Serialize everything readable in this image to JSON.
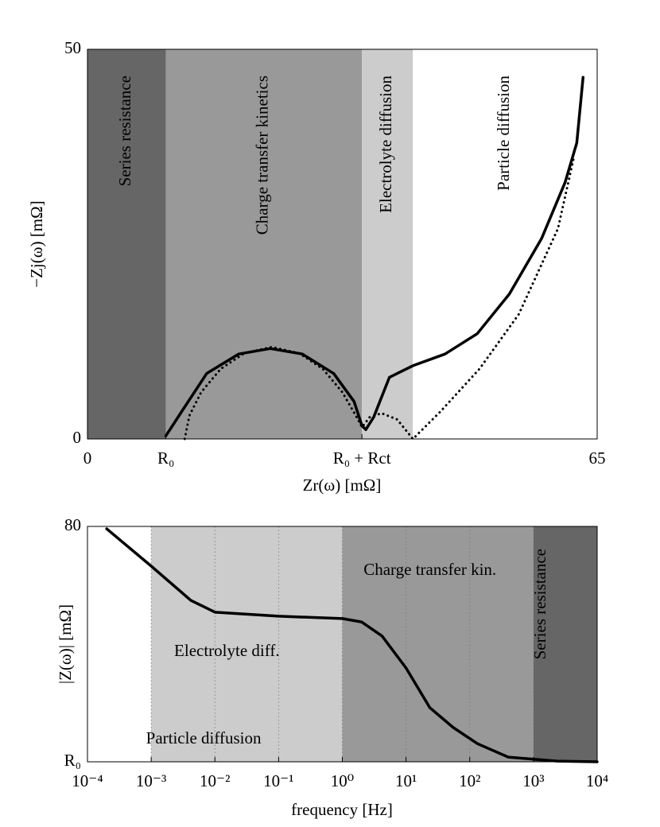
{
  "chart_data": [
    {
      "type": "line",
      "x_label": "Zr(ω) [mΩ]",
      "y_label": "−Zj(ω) [mΩ]",
      "xlim": [
        0,
        65
      ],
      "ylim": [
        0,
        50
      ],
      "xticks": [
        0,
        {
          "value": 10,
          "label": "R₀"
        },
        {
          "value": 35,
          "label": "R₀ + Rct"
        },
        65
      ],
      "yticks": [
        0,
        50
      ],
      "regions": [
        {
          "name": "Series resistance",
          "start": 0,
          "end": 10,
          "color": "#666666"
        },
        {
          "name": "Charge transfer kinetics",
          "start": 10,
          "end": 35,
          "color": "#999999"
        },
        {
          "name": "Electrolyte diffusion",
          "start": 35,
          "end": 41.5,
          "color": "#cccccc"
        },
        {
          "name": "Particle diffusion",
          "start": 41.5,
          "end": 65,
          "color": "#ffffff"
        }
      ],
      "series": [
        {
          "color": "#000000",
          "dash": "solid",
          "x": [
            10,
            12.2,
            15.2,
            19.3,
            23.3,
            27.4,
            31.4,
            34,
            35,
            35.5,
            36.5,
            38.5,
            41.5,
            45.6,
            49.7,
            53.8,
            57.9,
            60.9,
            62.4,
            63.2
          ],
          "values": [
            0.4,
            3.8,
            8.4,
            10.9,
            11.6,
            10.9,
            8.4,
            4.8,
            1.7,
            1.2,
            2.8,
            7.9,
            9.4,
            10.9,
            13.5,
            18.6,
            25.7,
            32.9,
            38,
            46.4
          ]
        },
        {
          "color": "#000000",
          "dash": "dotted",
          "x": [
            12.4,
            13,
            14.5,
            17,
            20,
            23.5,
            27,
            30,
            32.5,
            34.5,
            35,
            36,
            37.5,
            39.5,
            41.5,
            45,
            50,
            55,
            60,
            62
          ],
          "values": [
            0,
            3,
            6,
            9,
            11,
            11.8,
            11,
            9,
            6,
            2.5,
            1.5,
            2.8,
            3.3,
            2.5,
            0,
            3.5,
            9,
            16,
            27,
            36
          ]
        }
      ]
    },
    {
      "type": "line",
      "x_label": "frequency [Hz]",
      "y_label": "|Z(ω)| [mΩ]",
      "xscale": "log",
      "grid": true,
      "xlim": [
        0.0001,
        10000
      ],
      "ylim": [
        10,
        80
      ],
      "xticks": [
        {
          "value": 0.0001,
          "label": "10⁻⁴"
        },
        {
          "value": 0.001,
          "label": "10⁻³"
        },
        {
          "value": 0.01,
          "label": "10⁻²"
        },
        {
          "value": 0.1,
          "label": "10⁻¹"
        },
        {
          "value": 1,
          "label": "10⁰"
        },
        {
          "value": 10,
          "label": "10¹"
        },
        {
          "value": 100,
          "label": "10²"
        },
        {
          "value": 1000,
          "label": "10³"
        },
        {
          "value": 10000,
          "label": "10⁴"
        }
      ],
      "yticks": [
        {
          "value": 10,
          "label": "R₀"
        },
        80
      ],
      "regions": [
        {
          "name": "Particle diffusion",
          "start": 0.0001,
          "end": 0.001,
          "color": "#ffffff"
        },
        {
          "name": "Electrolyte diff.",
          "start": 0.001,
          "end": 1,
          "color": "#cccccc"
        },
        {
          "name": "Charge transfer kin.",
          "start": 1,
          "end": 1000,
          "color": "#999999"
        },
        {
          "name": "Series resistance",
          "start": 1000,
          "end": 10000,
          "color": "#666666"
        }
      ],
      "series": [
        {
          "color": "#000000",
          "dash": "solid",
          "x": [
            0.0002,
            0.001,
            0.0042,
            0.01,
            0.1,
            1,
            2,
            4.2,
            10,
            23.6,
            55,
            132,
            400,
            2340,
            10000
          ],
          "values": [
            79.3,
            68.2,
            58,
            54.5,
            53.3,
            52.6,
            51.6,
            47.4,
            37.9,
            26.1,
            20.2,
            15.4,
            11.4,
            10.2,
            10
          ]
        }
      ]
    }
  ]
}
